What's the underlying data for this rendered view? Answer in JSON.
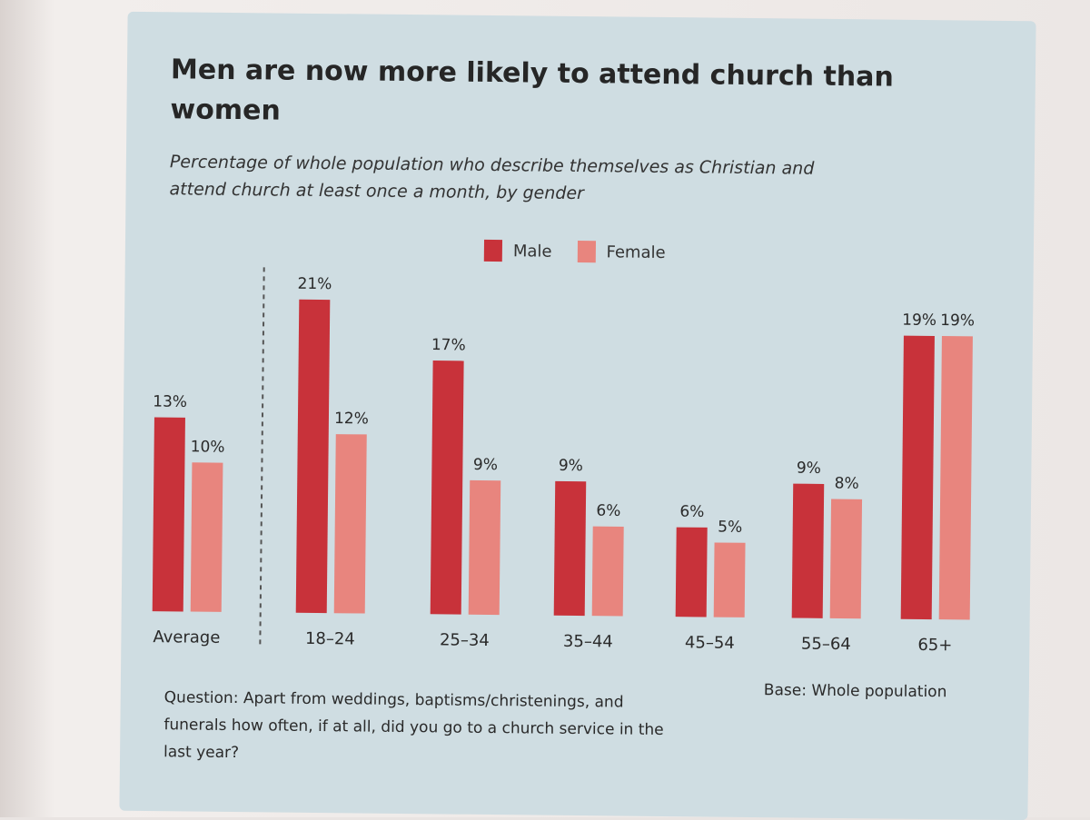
{
  "chart_data": {
    "type": "bar",
    "title": "Men are now more likely to attend church than women",
    "subtitle": "Percentage of whole population who describe themselves as Christian and attend church at least once a month, by gender",
    "categories": [
      "Average",
      "18–24",
      "25–34",
      "35–44",
      "45–54",
      "55–64",
      "65+"
    ],
    "series": [
      {
        "name": "Male",
        "values": [
          13,
          21,
          17,
          9,
          6,
          9,
          19
        ],
        "labels": [
          "13%",
          "21%",
          "17%",
          "9%",
          "6%",
          "9%",
          "19%"
        ],
        "color": "#c8323a"
      },
      {
        "name": "Female",
        "values": [
          10,
          12,
          9,
          6,
          5,
          8,
          19
        ],
        "labels": [
          "10%",
          "12%",
          "9%",
          "6%",
          "5%",
          "8%",
          "19%"
        ],
        "color": "#e8857e"
      }
    ],
    "ylim": [
      0,
      21
    ],
    "xlabel": "",
    "ylabel": "",
    "grid": false,
    "legend_position": "top-center"
  },
  "footer": {
    "question": "Question: Apart from weddings, baptisms/christenings, and funerals how often, if at all, did you go to a church service in the last year?",
    "base": "Base: Whole population"
  }
}
